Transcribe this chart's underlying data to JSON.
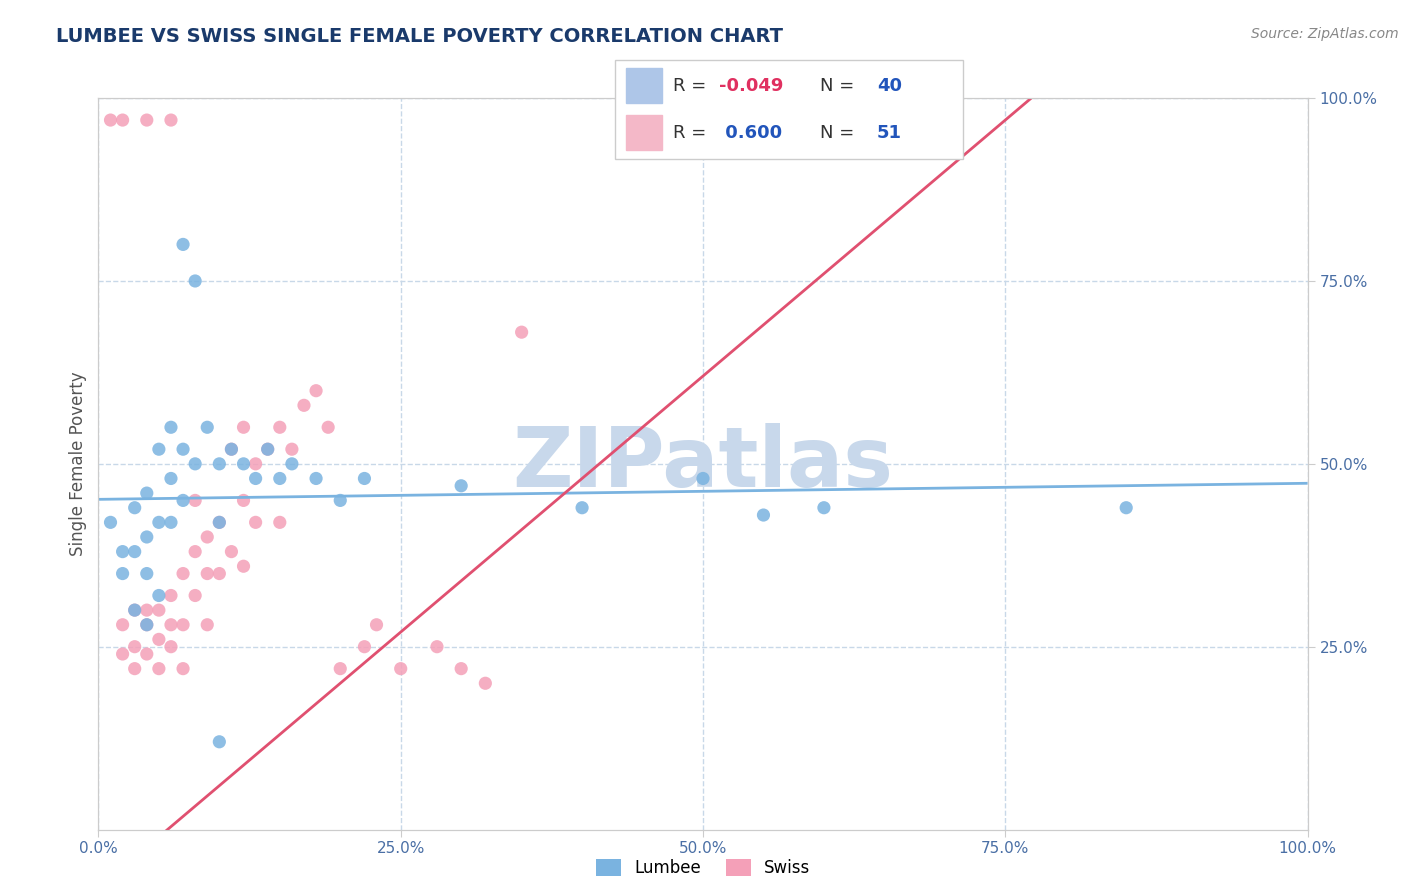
{
  "title": "LUMBEE VS SWISS SINGLE FEMALE POVERTY CORRELATION CHART",
  "source": "Source: ZipAtlas.com",
  "ylabel": "Single Female Poverty",
  "xlim": [
    0.0,
    1.0
  ],
  "ylim": [
    0.0,
    1.0
  ],
  "xtick_labels": [
    "0.0%",
    "25.0%",
    "50.0%",
    "75.0%",
    "100.0%"
  ],
  "xtick_positions": [
    0.0,
    0.25,
    0.5,
    0.75,
    1.0
  ],
  "ytick_labels": [
    "25.0%",
    "50.0%",
    "75.0%",
    "100.0%"
  ],
  "ytick_positions": [
    0.25,
    0.5,
    0.75,
    1.0
  ],
  "lumbee_color": "#7ab3e0",
  "swiss_color": "#f4a0b8",
  "lumbee_R": -0.049,
  "lumbee_N": 40,
  "swiss_R": 0.6,
  "swiss_N": 51,
  "lumbee_scatter": [
    [
      0.01,
      0.42
    ],
    [
      0.02,
      0.38
    ],
    [
      0.02,
      0.35
    ],
    [
      0.03,
      0.44
    ],
    [
      0.03,
      0.38
    ],
    [
      0.03,
      0.3
    ],
    [
      0.04,
      0.46
    ],
    [
      0.04,
      0.4
    ],
    [
      0.04,
      0.35
    ],
    [
      0.04,
      0.28
    ],
    [
      0.05,
      0.52
    ],
    [
      0.05,
      0.42
    ],
    [
      0.05,
      0.32
    ],
    [
      0.06,
      0.55
    ],
    [
      0.06,
      0.48
    ],
    [
      0.06,
      0.42
    ],
    [
      0.07,
      0.8
    ],
    [
      0.07,
      0.52
    ],
    [
      0.07,
      0.45
    ],
    [
      0.08,
      0.75
    ],
    [
      0.08,
      0.5
    ],
    [
      0.09,
      0.55
    ],
    [
      0.1,
      0.5
    ],
    [
      0.1,
      0.42
    ],
    [
      0.11,
      0.52
    ],
    [
      0.12,
      0.5
    ],
    [
      0.13,
      0.48
    ],
    [
      0.14,
      0.52
    ],
    [
      0.15,
      0.48
    ],
    [
      0.16,
      0.5
    ],
    [
      0.18,
      0.48
    ],
    [
      0.2,
      0.45
    ],
    [
      0.22,
      0.48
    ],
    [
      0.3,
      0.47
    ],
    [
      0.4,
      0.44
    ],
    [
      0.5,
      0.48
    ],
    [
      0.55,
      0.43
    ],
    [
      0.6,
      0.44
    ],
    [
      0.85,
      0.44
    ],
    [
      0.1,
      0.12
    ]
  ],
  "swiss_scatter": [
    [
      0.01,
      0.97
    ],
    [
      0.02,
      0.97
    ],
    [
      0.04,
      0.97
    ],
    [
      0.06,
      0.97
    ],
    [
      0.02,
      0.28
    ],
    [
      0.02,
      0.24
    ],
    [
      0.03,
      0.3
    ],
    [
      0.03,
      0.25
    ],
    [
      0.03,
      0.22
    ],
    [
      0.04,
      0.28
    ],
    [
      0.04,
      0.24
    ],
    [
      0.04,
      0.3
    ],
    [
      0.05,
      0.26
    ],
    [
      0.05,
      0.22
    ],
    [
      0.05,
      0.3
    ],
    [
      0.06,
      0.28
    ],
    [
      0.06,
      0.32
    ],
    [
      0.06,
      0.25
    ],
    [
      0.07,
      0.35
    ],
    [
      0.07,
      0.28
    ],
    [
      0.07,
      0.22
    ],
    [
      0.08,
      0.38
    ],
    [
      0.08,
      0.32
    ],
    [
      0.08,
      0.45
    ],
    [
      0.09,
      0.4
    ],
    [
      0.09,
      0.35
    ],
    [
      0.09,
      0.28
    ],
    [
      0.1,
      0.42
    ],
    [
      0.1,
      0.35
    ],
    [
      0.11,
      0.52
    ],
    [
      0.11,
      0.38
    ],
    [
      0.12,
      0.55
    ],
    [
      0.12,
      0.45
    ],
    [
      0.12,
      0.36
    ],
    [
      0.13,
      0.5
    ],
    [
      0.13,
      0.42
    ],
    [
      0.14,
      0.52
    ],
    [
      0.15,
      0.55
    ],
    [
      0.15,
      0.42
    ],
    [
      0.16,
      0.52
    ],
    [
      0.17,
      0.58
    ],
    [
      0.18,
      0.6
    ],
    [
      0.19,
      0.55
    ],
    [
      0.2,
      0.22
    ],
    [
      0.22,
      0.25
    ],
    [
      0.23,
      0.28
    ],
    [
      0.25,
      0.22
    ],
    [
      0.28,
      0.25
    ],
    [
      0.3,
      0.22
    ],
    [
      0.32,
      0.2
    ],
    [
      0.35,
      0.68
    ]
  ],
  "title_color": "#1a3a6b",
  "source_color": "#888888",
  "watermark": "ZIPatlas",
  "watermark_color": "#c8d8eb",
  "grid_color": "#c8d8e8",
  "legend_box_color_lumbee": "#aec6e8",
  "legend_box_color_swiss": "#f4b8c8",
  "r_value_color": "#2255bb",
  "r_label_color": "#e03060"
}
